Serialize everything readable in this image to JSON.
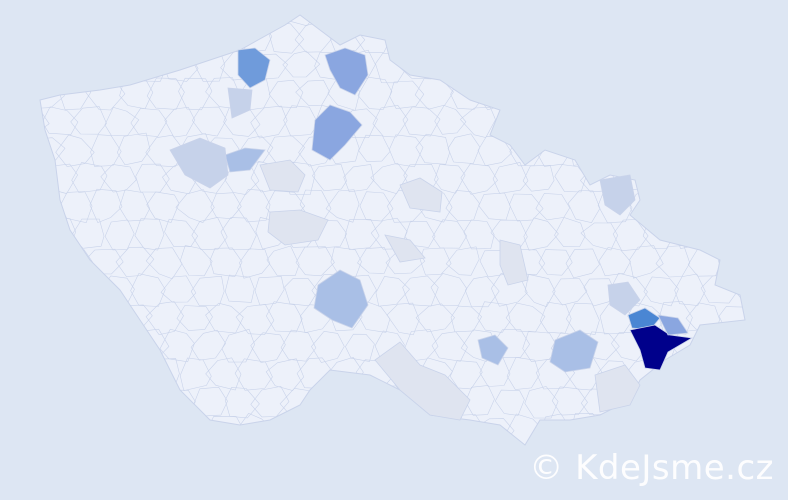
{
  "watermark": "© KdeJsme.cz",
  "colors": {
    "background": "#dde6f3",
    "base_fill": "#edf1fa",
    "border": "#c9d3ea",
    "level_1": "#dfe4f0",
    "level_2": "#c6d2ea",
    "level_3": "#a9bfe6",
    "level_4": "#8aa6e0",
    "level_5": "#6f9bdb",
    "level_6": "#4a86d3",
    "level_max": "#00008b"
  },
  "regions": [
    {
      "level": "level_5"
    },
    {
      "level": "level_4"
    },
    {
      "level": "level_4"
    },
    {
      "level": "level_3"
    },
    {
      "level": "level_3"
    },
    {
      "level": "level_3"
    },
    {
      "level": "level_3"
    },
    {
      "level": "level_6"
    },
    {
      "level": "level_max"
    },
    {
      "level": "level_4"
    },
    {
      "level": "level_2"
    },
    {
      "level": "level_2"
    },
    {
      "level": "level_2"
    },
    {
      "level": "level_1"
    },
    {
      "level": "level_1"
    },
    {
      "level": "level_1"
    },
    {
      "level": "level_1"
    },
    {
      "level": "level_1"
    },
    {
      "level": "level_1"
    },
    {
      "level": "level_2"
    },
    {
      "level": "level_1"
    }
  ]
}
